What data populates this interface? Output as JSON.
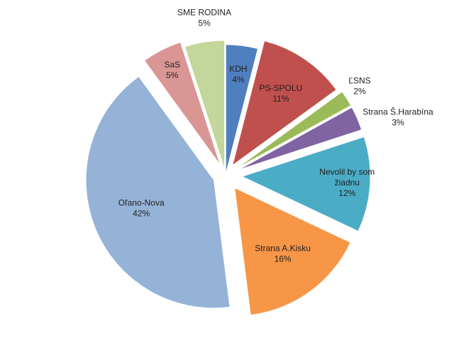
{
  "chart_data": {
    "type": "pie",
    "title": "",
    "exploded": true,
    "slices": [
      {
        "name": "KDH",
        "value": 4,
        "value_label": "4%",
        "color": "#4f7fbf"
      },
      {
        "name": "PS-SPOLU",
        "value": 11,
        "value_label": "11%",
        "color": "#c0504d"
      },
      {
        "name": "ĽSNS",
        "value": 2,
        "value_label": "2%",
        "color": "#9bbb59"
      },
      {
        "name": "Strana Š.Harabína",
        "value": 3,
        "value_label": "3%",
        "color": "#8064a2"
      },
      {
        "name": "Nevolil by som",
        "name2": "žiadnu",
        "value": 12,
        "value_label": "12%",
        "color": "#4bacc6"
      },
      {
        "name": "Strana A.Kisku",
        "value": 16,
        "value_label": "16%",
        "color": "#f79646"
      },
      {
        "name": "Oľano-Nova",
        "value": 42,
        "value_label": "42%",
        "color": "#95b3d7"
      },
      {
        "name": "SaS",
        "value": 5,
        "value_label": "5%",
        "color": "#d99694"
      },
      {
        "name": "SME RODINA",
        "value": 5,
        "value_label": "5%",
        "color": "#c3d69b"
      }
    ]
  }
}
